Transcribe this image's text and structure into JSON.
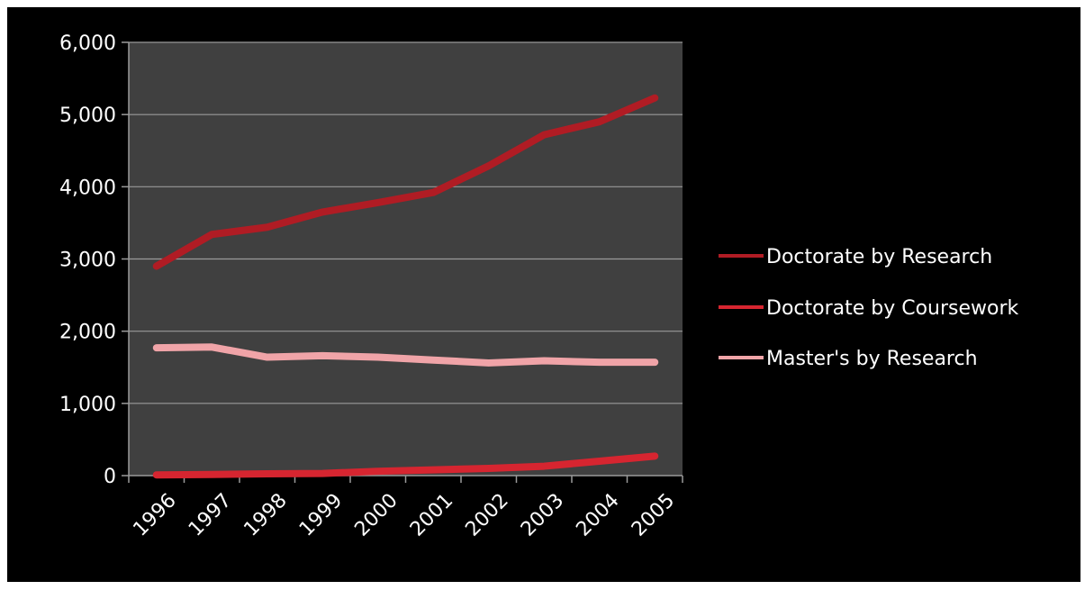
{
  "chart_data": {
    "type": "line",
    "title": "",
    "xlabel": "",
    "ylabel": "",
    "categories": [
      "1996",
      "1997",
      "1998",
      "1999",
      "2000",
      "2001",
      "2002",
      "2003",
      "2004",
      "2005"
    ],
    "ylim": [
      0,
      6000
    ],
    "yticks": [
      0,
      1000,
      2000,
      3000,
      4000,
      5000,
      6000
    ],
    "ytick_labels": [
      "0",
      "1,000",
      "2,000",
      "3,000",
      "4,000",
      "5,000",
      "6,000"
    ],
    "grid": true,
    "legend_position": "right",
    "plot_background": "#404040",
    "background": "#000000",
    "series": [
      {
        "name": "Doctorate by Research",
        "color": "#b01c24",
        "values": [
          2900,
          3340,
          3440,
          3650,
          3780,
          3920,
          4290,
          4720,
          4900,
          5230
        ]
      },
      {
        "name": "Doctorate by Coursework",
        "color": "#d62530",
        "values": [
          10,
          15,
          25,
          30,
          60,
          80,
          100,
          130,
          200,
          270
        ]
      },
      {
        "name": "Master's by Research",
        "color": "#f0a4a8",
        "values": [
          1770,
          1780,
          1640,
          1660,
          1640,
          1600,
          1560,
          1590,
          1570,
          1570
        ]
      }
    ]
  }
}
